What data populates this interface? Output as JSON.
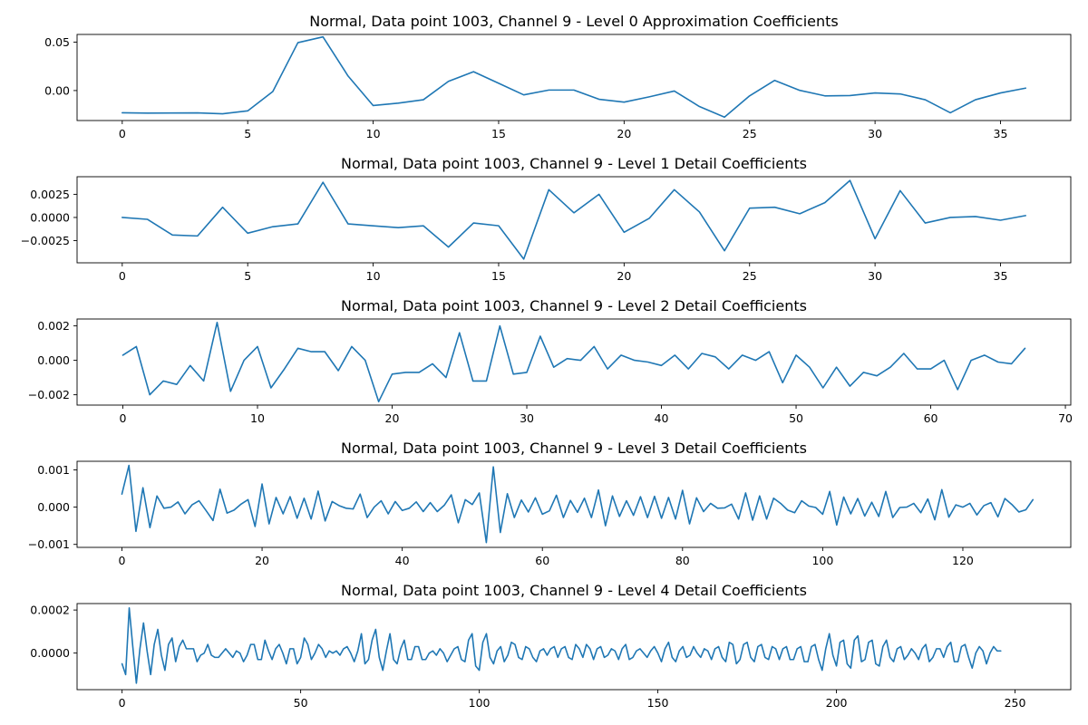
{
  "colors": {
    "line": "#1f77b4",
    "axes": "#000000",
    "background": "#ffffff"
  },
  "chart_data": [
    {
      "type": "line",
      "title": "Normal, Data point 1003, Channel 9 - Level 0 Approximation Coefficients",
      "xlabel": "",
      "ylabel": "",
      "xlim": [
        -1.8,
        37.8
      ],
      "ylim": [
        -0.031,
        0.058
      ],
      "xticks": [
        0,
        5,
        10,
        15,
        20,
        25,
        30,
        35
      ],
      "xtick_labels": [
        "0",
        "5",
        "10",
        "15",
        "20",
        "25",
        "30",
        "35"
      ],
      "yticks": [
        0,
        0.05
      ],
      "ytick_labels": [
        "0.00",
        "0.05"
      ],
      "grid": false,
      "x_start": 0,
      "values": [
        -0.023,
        -0.0233,
        -0.0232,
        -0.0231,
        -0.024,
        -0.021,
        -0.001,
        0.0495,
        0.0555,
        0.015,
        -0.0155,
        -0.013,
        -0.0095,
        0.0095,
        0.0195,
        0.0075,
        -0.0045,
        0.0005,
        0.0005,
        -0.009,
        -0.012,
        -0.0065,
        -0.0005,
        -0.0165,
        -0.0275,
        -0.0055,
        0.0105,
        0.0002,
        -0.0055,
        -0.0052,
        -0.0025,
        -0.0035,
        -0.0095,
        -0.023,
        -0.0095,
        -0.0025,
        0.0025
      ]
    },
    {
      "type": "line",
      "title": "Normal, Data point 1003, Channel 9 - Level 1 Detail Coefficients",
      "xlabel": "",
      "ylabel": "",
      "xlim": [
        -1.8,
        37.8
      ],
      "ylim": [
        -0.0049,
        0.0044
      ],
      "xticks": [
        0,
        5,
        10,
        15,
        20,
        25,
        30,
        35
      ],
      "xtick_labels": [
        "0",
        "5",
        "10",
        "15",
        "20",
        "25",
        "30",
        "35"
      ],
      "yticks": [
        -0.0025,
        0,
        0.0025
      ],
      "ytick_labels": [
        "−0.0025",
        "0.0000",
        "0.0025"
      ],
      "grid": false,
      "x_start": 0,
      "values": [
        0.0,
        -0.0002,
        -0.0019,
        -0.002,
        0.0011,
        -0.0017,
        -0.001,
        -0.0007,
        0.0038,
        -0.0007,
        -0.0009,
        -0.0011,
        -0.0009,
        -0.0032,
        -0.0006,
        -0.0009,
        -0.0045,
        0.003,
        0.0005,
        0.0025,
        -0.0016,
        -0.0001,
        0.003,
        0.0006,
        -0.0036,
        0.001,
        0.0011,
        0.0004,
        0.0016,
        0.004,
        -0.0023,
        0.0029,
        -0.0006,
        0.0,
        0.0001,
        -0.0003,
        0.0002
      ]
    },
    {
      "type": "line",
      "title": "Normal, Data point 1003, Channel 9 - Level 2 Detail Coefficients",
      "xlabel": "",
      "ylabel": "",
      "xlim": [
        -3.4,
        70.4
      ],
      "ylim": [
        -0.0026,
        0.0024
      ],
      "xticks": [
        0,
        10,
        20,
        30,
        40,
        50,
        60,
        70
      ],
      "xtick_labels": [
        "0",
        "10",
        "20",
        "30",
        "40",
        "50",
        "60",
        "70"
      ],
      "yticks": [
        -0.002,
        0,
        0.002
      ],
      "ytick_labels": [
        "−0.002",
        "0.000",
        "0.002"
      ],
      "grid": false,
      "x_start": 0,
      "values": [
        0.0003,
        0.0008,
        -0.002,
        -0.0012,
        -0.0014,
        -0.0003,
        -0.0012,
        0.0022,
        -0.0018,
        0.0,
        0.0008,
        -0.0016,
        -0.0005,
        0.0007,
        0.0005,
        0.0005,
        -0.0006,
        0.0008,
        0.0,
        -0.0024,
        -0.0008,
        -0.0007,
        -0.0007,
        -0.0002,
        -0.001,
        0.0016,
        -0.0012,
        -0.0012,
        0.002,
        -0.0008,
        -0.0007,
        0.0014,
        -0.0004,
        0.0001,
        0.0,
        0.0008,
        -0.0005,
        0.0003,
        0.0,
        -0.0001,
        -0.0003,
        0.0003,
        -0.0005,
        0.0004,
        0.0002,
        -0.0005,
        0.0003,
        0.0,
        0.0005,
        -0.0013,
        0.0003,
        -0.0004,
        -0.0016,
        -0.0004,
        -0.0015,
        -0.0007,
        -0.0009,
        -0.0004,
        0.0004,
        -0.0005,
        -0.0005,
        0.0,
        -0.0017,
        0.0,
        0.0003,
        -0.0001,
        -0.0002,
        0.0007
      ]
    },
    {
      "type": "line",
      "title": "Normal, Data point 1003, Channel 9 - Level 3 Detail Coefficients",
      "xlabel": "",
      "ylabel": "",
      "xlim": [
        -6.4,
        135.4
      ],
      "ylim": [
        -0.00108,
        0.00123
      ],
      "xticks": [
        0,
        20,
        40,
        60,
        80,
        100,
        120
      ],
      "xtick_labels": [
        "0",
        "20",
        "40",
        "60",
        "80",
        "100",
        "120"
      ],
      "yticks": [
        -0.001,
        0,
        0.001
      ],
      "ytick_labels": [
        "−0.001",
        "0.000",
        "0.001"
      ],
      "grid": false,
      "x_start": 0,
      "values": [
        0.00035,
        0.00112,
        -0.00065,
        0.00052,
        -0.00055,
        0.0003,
        -3e-05,
        0.0,
        0.00014,
        -0.00018,
        6e-05,
        0.00017,
        -9e-05,
        -0.00036,
        0.00048,
        -0.00016,
        -8e-05,
        8e-05,
        0.0002,
        -0.00052,
        0.00062,
        -0.00045,
        0.00026,
        -0.00018,
        0.00028,
        -0.0003,
        0.00024,
        -0.00032,
        0.00043,
        -0.00037,
        0.00015,
        4e-05,
        -3e-05,
        -5e-05,
        0.00035,
        -0.00028,
        0.0,
        0.00017,
        -0.00018,
        0.00015,
        -9e-05,
        -3e-05,
        0.00014,
        -0.00012,
        0.00012,
        -0.00012,
        5e-05,
        0.00033,
        -0.00042,
        0.0002,
        7e-05,
        0.00038,
        -0.00095,
        0.00108,
        -0.00068,
        0.00036,
        -0.00028,
        0.00019,
        -0.00013,
        0.00025,
        -0.00019,
        -0.0001,
        0.00032,
        -0.00028,
        0.00018,
        -0.00014,
        0.00024,
        -0.00028,
        0.00046,
        -0.0005,
        0.0003,
        -0.00025,
        0.00017,
        -0.00022,
        0.00028,
        -0.00028,
        0.00029,
        -0.0003,
        0.00026,
        -0.00032,
        0.00045,
        -0.00045,
        0.00025,
        -0.00012,
        0.0001,
        -3e-05,
        -2e-05,
        8e-05,
        -0.00032,
        0.00038,
        -0.00035,
        0.0003,
        -0.00032,
        0.00024,
        0.0001,
        -8e-05,
        -0.00015,
        0.00017,
        3e-05,
        -1e-05,
        -0.00019,
        0.00042,
        -0.00048,
        0.00027,
        -0.00018,
        0.00023,
        -0.00024,
        0.00013,
        -0.00025,
        0.00042,
        -0.00028,
        -1e-05,
        0.0,
        0.0001,
        -0.00015,
        0.00022,
        -0.00034,
        0.00047,
        -0.00027,
        6e-05,
        0.0,
        0.0001,
        -0.00021,
        4e-05,
        0.00012,
        -0.00026,
        0.00023,
        7e-05,
        -0.00013,
        -7e-05,
        0.0002
      ]
    },
    {
      "type": "line",
      "title": "Normal, Data point 1003, Channel 9 - Level 4 Detail Coefficients",
      "xlabel": "",
      "ylabel": "",
      "xlim": [
        -12.6,
        265.6
      ],
      "ylim": [
        -0.00017,
        0.00023
      ],
      "xticks": [
        0,
        50,
        100,
        150,
        200,
        250
      ],
      "xtick_labels": [
        "0",
        "50",
        "100",
        "150",
        "200",
        "250"
      ],
      "yticks": [
        0,
        0.0002
      ],
      "ytick_labels": [
        "0.0000",
        "0.0002"
      ],
      "grid": false,
      "x_start": 0,
      "values": [
        -5e-05,
        -0.0001,
        0.00021,
        3e-05,
        -0.00014,
        2e-05,
        0.00014,
        1e-05,
        -0.0001,
        4e-05,
        0.00011,
        -1e-05,
        -8e-05,
        4e-05,
        7e-05,
        -4e-05,
        3e-05,
        6e-05,
        2e-05,
        2e-05,
        2e-05,
        -4e-05,
        -1e-05,
        0.0,
        4e-05,
        -1e-05,
        -2e-05,
        -2e-05,
        0.0,
        2e-05,
        0.0,
        -2e-05,
        1e-05,
        0.0,
        -4e-05,
        -1e-05,
        4e-05,
        4e-05,
        -3e-05,
        -3e-05,
        6e-05,
        1e-05,
        -3e-05,
        2e-05,
        4e-05,
        0.0,
        -5e-05,
        2e-05,
        2e-05,
        -5e-05,
        -2e-05,
        7e-05,
        4e-05,
        -3e-05,
        0.0,
        4e-05,
        2e-05,
        -2e-05,
        1e-05,
        0.0,
        1e-05,
        -1e-05,
        2e-05,
        3e-05,
        0.0,
        -4e-05,
        1e-05,
        9e-05,
        -5e-05,
        -3e-05,
        6e-05,
        0.00011,
        -2e-05,
        -8e-05,
        1e-05,
        9e-05,
        -3e-05,
        -5e-05,
        2e-05,
        6e-05,
        -3e-05,
        -3e-05,
        3e-05,
        3e-05,
        -3e-05,
        -3e-05,
        0.0,
        1e-05,
        -1e-05,
        2e-05,
        0.0,
        -4e-05,
        -1e-05,
        2e-05,
        3e-05,
        -3e-05,
        -4e-05,
        6e-05,
        9e-05,
        -6e-05,
        -8e-05,
        5e-05,
        9e-05,
        -2e-05,
        -5e-05,
        1e-05,
        3e-05,
        -4e-05,
        -1e-05,
        5e-05,
        4e-05,
        -2e-05,
        -3e-05,
        3e-05,
        2e-05,
        -2e-05,
        -4e-05,
        1e-05,
        2e-05,
        -1e-05,
        2e-05,
        3e-05,
        -2e-05,
        2e-05,
        3e-05,
        -2e-05,
        -3e-05,
        4e-05,
        2e-05,
        -2e-05,
        4e-05,
        2e-05,
        -3e-05,
        2e-05,
        3e-05,
        -2e-05,
        -1e-05,
        2e-05,
        1e-05,
        -3e-05,
        2e-05,
        4e-05,
        -3e-05,
        -2e-05,
        1e-05,
        2e-05,
        0.0,
        -2e-05,
        1e-05,
        3e-05,
        0.0,
        -4e-05,
        2e-05,
        5e-05,
        -2e-05,
        -4e-05,
        1e-05,
        3e-05,
        -2e-05,
        -1e-05,
        3e-05,
        0.0,
        -2e-05,
        2e-05,
        1e-05,
        -3e-05,
        2e-05,
        3e-05,
        -2e-05,
        -4e-05,
        5e-05,
        4e-05,
        -5e-05,
        -3e-05,
        4e-05,
        5e-05,
        -2e-05,
        -4e-05,
        3e-05,
        4e-05,
        -2e-05,
        -3e-05,
        3e-05,
        2e-05,
        -3e-05,
        2e-05,
        3e-05,
        -3e-05,
        -3e-05,
        2e-05,
        3e-05,
        -4e-05,
        -4e-05,
        3e-05,
        4e-05,
        -3e-05,
        -8e-05,
        2e-05,
        9e-05,
        -1e-05,
        -6e-05,
        5e-05,
        6e-05,
        -5e-05,
        -7e-05,
        6e-05,
        8e-05,
        -4e-05,
        -3e-05,
        5e-05,
        6e-05,
        -5e-05,
        -6e-05,
        3e-05,
        6e-05,
        -2e-05,
        -4e-05,
        2e-05,
        3e-05,
        -3e-05,
        -1e-05,
        2e-05,
        0.0,
        -3e-05,
        2e-05,
        4e-05,
        -4e-05,
        -2e-05,
        2e-05,
        2e-05,
        -2e-05,
        3e-05,
        5e-05,
        -4e-05,
        -4e-05,
        3e-05,
        4e-05,
        -2e-05,
        -7e-05,
        0.0,
        3e-05,
        1e-05,
        -5e-05,
        0.0,
        3e-05,
        1e-05,
        1e-05
      ]
    }
  ]
}
